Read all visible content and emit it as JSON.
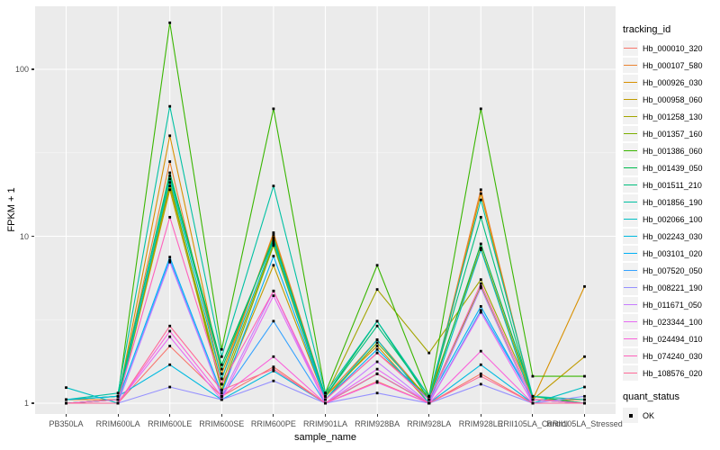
{
  "legend": {
    "tracking_title": "tracking_id",
    "quant_title": "quant_status",
    "quant_label": "OK"
  },
  "theme": {
    "panel_bg": "#EBEBEB",
    "grid_major_color": "#FFFFFF",
    "grid_minor_color": "#F5F5F5",
    "tick_label_color": "#4D4D4D",
    "tick_mark_color": "#333333",
    "axis_title_color": "#000000",
    "legend_key_bg": "#F2F2F2",
    "point_color": "#000000"
  },
  "chart_data": {
    "type": "line",
    "title": "",
    "xlabel": "sample_name",
    "ylabel": "FPKM + 1",
    "y_scale": "log10",
    "ylim": [
      1,
      200
    ],
    "y_major_ticks": [
      1,
      10,
      100
    ],
    "y_tick_labels": [
      "1",
      "10",
      "100"
    ],
    "y_minor_ticks": [
      3.1623,
      31.6228
    ],
    "grid": true,
    "legend_position": "right",
    "point_marker": "square",
    "quant_status_all": "OK",
    "categories": [
      "PB350LA",
      "RRIM600LA",
      "RRIM600LE",
      "RRIM600SE",
      "RRIM600PE",
      "RRIM901LA",
      "RRIM928BA",
      "RRIM928LA",
      "RRIM928LE",
      "RRII105LA_Control",
      "RRII105LA_Stressed"
    ],
    "series": [
      {
        "name": "Hb_000010_320",
        "color": "#F8766D",
        "values": [
          1.0,
          1.0,
          2.2,
          1.1,
          1.65,
          1.0,
          1.35,
          1.0,
          1.5,
          1.0,
          1.0
        ]
      },
      {
        "name": "Hb_000107_580",
        "color": "#EA8331",
        "values": [
          1.05,
          1.05,
          28.0,
          1.4,
          10.5,
          1.1,
          2.4,
          1.05,
          19.0,
          1.05,
          1.05
        ]
      },
      {
        "name": "Hb_000926_030",
        "color": "#D89000",
        "values": [
          1.0,
          1.05,
          40.0,
          1.5,
          10.2,
          1.1,
          2.2,
          1.0,
          18.0,
          1.05,
          5.0
        ]
      },
      {
        "name": "Hb_000958_060",
        "color": "#C09B00",
        "values": [
          1.0,
          1.0,
          19.0,
          1.2,
          6.7,
          1.05,
          2.0,
          1.1,
          8.5,
          1.05,
          1.9
        ]
      },
      {
        "name": "Hb_001258_130",
        "color": "#A3A500",
        "values": [
          1.0,
          1.05,
          20.0,
          1.3,
          9.0,
          1.1,
          4.8,
          2.0,
          5.5,
          1.1,
          1.0
        ]
      },
      {
        "name": "Hb_001357_160",
        "color": "#7CAE00",
        "values": [
          1.0,
          1.0,
          21.0,
          1.2,
          8.8,
          1.05,
          2.3,
          1.05,
          5.0,
          1.0,
          1.0
        ]
      },
      {
        "name": "Hb_001386_060",
        "color": "#39B600",
        "values": [
          1.05,
          1.1,
          190.0,
          2.1,
          58.0,
          1.15,
          6.7,
          1.1,
          58.0,
          1.45,
          1.45
        ]
      },
      {
        "name": "Hb_001439_050",
        "color": "#00BB4E",
        "values": [
          1.0,
          1.05,
          24.0,
          1.7,
          9.5,
          1.1,
          3.1,
          1.05,
          9.0,
          1.1,
          1.0
        ]
      },
      {
        "name": "Hb_001511_210",
        "color": "#00BF7D",
        "values": [
          1.05,
          1.1,
          23.0,
          1.6,
          9.8,
          1.1,
          2.9,
          1.1,
          13.0,
          1.05,
          1.0
        ]
      },
      {
        "name": "Hb_001856_190",
        "color": "#00C1A3",
        "values": [
          1.05,
          1.15,
          60.0,
          1.9,
          20.0,
          1.15,
          3.1,
          1.1,
          16.5,
          1.1,
          1.05
        ]
      },
      {
        "name": "Hb_002066_100",
        "color": "#00BFC4",
        "values": [
          1.24,
          1.0,
          22.0,
          1.4,
          9.3,
          1.05,
          2.4,
          1.0,
          8.3,
          1.0,
          1.25
        ]
      },
      {
        "name": "Hb_002243_030",
        "color": "#00BAE0",
        "values": [
          1.05,
          1.1,
          1.7,
          1.05,
          1.56,
          1.0,
          1.5,
          1.0,
          1.7,
          1.0,
          1.0
        ]
      },
      {
        "name": "Hb_003101_020",
        "color": "#00B0F6",
        "values": [
          1.0,
          1.05,
          7.5,
          1.15,
          7.6,
          1.05,
          2.1,
          1.05,
          3.8,
          1.05,
          1.0
        ]
      },
      {
        "name": "Hb_007520_050",
        "color": "#35A2FF",
        "values": [
          1.0,
          1.0,
          7.2,
          1.1,
          3.1,
          1.0,
          1.5,
          1.0,
          3.6,
          1.05,
          1.0
        ]
      },
      {
        "name": "Hb_008221_190",
        "color": "#9590FF",
        "values": [
          1.0,
          1.0,
          1.25,
          1.05,
          1.36,
          1.0,
          1.15,
          1.0,
          1.3,
          1.0,
          1.1
        ]
      },
      {
        "name": "Hb_011671_050",
        "color": "#C77CFF",
        "values": [
          1.0,
          1.0,
          7.0,
          1.1,
          4.7,
          1.0,
          1.77,
          1.0,
          4.9,
          1.0,
          1.0
        ]
      },
      {
        "name": "Hb_023344_100",
        "color": "#E76BF3",
        "values": [
          1.0,
          1.0,
          2.5,
          1.05,
          4.4,
          1.0,
          1.6,
          1.0,
          3.5,
          1.0,
          1.0
        ]
      },
      {
        "name": "Hb_024494_010",
        "color": "#FA62DB",
        "values": [
          1.0,
          1.0,
          2.7,
          1.1,
          1.9,
          1.0,
          1.33,
          1.0,
          2.05,
          1.0,
          1.0
        ]
      },
      {
        "name": "Hb_074240_030",
        "color": "#FF62BC",
        "values": [
          1.0,
          1.05,
          13.0,
          1.3,
          4.7,
          1.05,
          2.0,
          1.05,
          5.2,
          1.05,
          1.0
        ]
      },
      {
        "name": "Hb_108576_020",
        "color": "#FF6A98",
        "values": [
          1.0,
          1.0,
          2.9,
          1.2,
          1.6,
          1.0,
          1.5,
          1.0,
          1.45,
          1.0,
          1.0
        ]
      }
    ]
  }
}
